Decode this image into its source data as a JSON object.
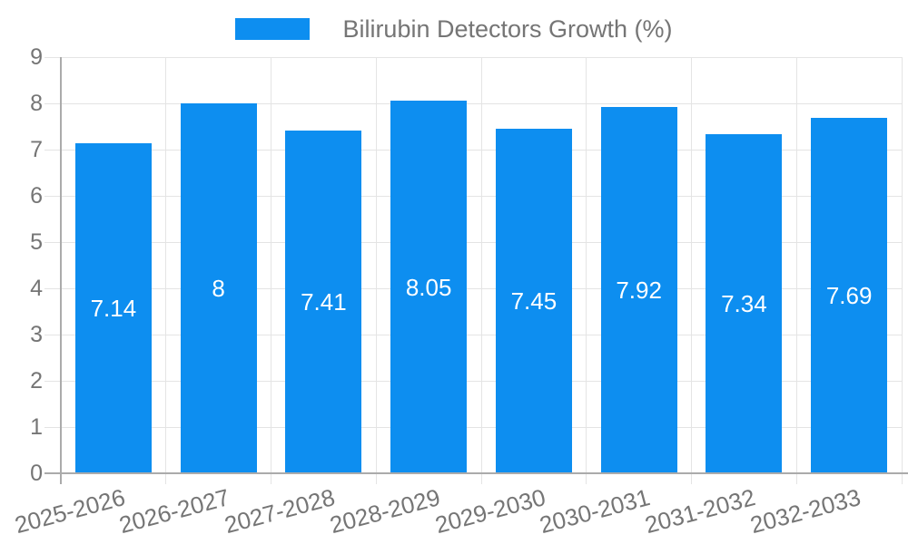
{
  "legend": {
    "label": "Bilirubin Detectors Growth (%)"
  },
  "colors": {
    "bar": "#0d8ef0",
    "grid": "#e4e4e4",
    "tick": "#d6d6d6",
    "axis": "#ababab",
    "label_text": "#757575",
    "value_label_text": "#ffffff",
    "background": "#ffffff"
  },
  "chart_data": {
    "type": "bar",
    "title": "Bilirubin Detectors Growth (%)",
    "categories": [
      "2025-2026",
      "2026-2027",
      "2027-2028",
      "2028-2029",
      "2029-2030",
      "2030-2031",
      "2031-2032",
      "2032-2033"
    ],
    "values": [
      7.14,
      8,
      7.41,
      8.05,
      7.45,
      7.92,
      7.34,
      7.69
    ],
    "value_labels": [
      "7.14",
      "8",
      "7.41",
      "8.05",
      "7.45",
      "7.92",
      "7.34",
      "7.69"
    ],
    "xlabel": "",
    "ylabel": "",
    "ylim": [
      0,
      9
    ],
    "ytick_interval": 1,
    "ytick_labels": [
      "0",
      "1",
      "2",
      "3",
      "4",
      "5",
      "6",
      "7",
      "8",
      "9"
    ],
    "grid": true,
    "legend_position": "top-center",
    "x_label_rotation_deg": -15,
    "value_label_position": "inside-center"
  }
}
